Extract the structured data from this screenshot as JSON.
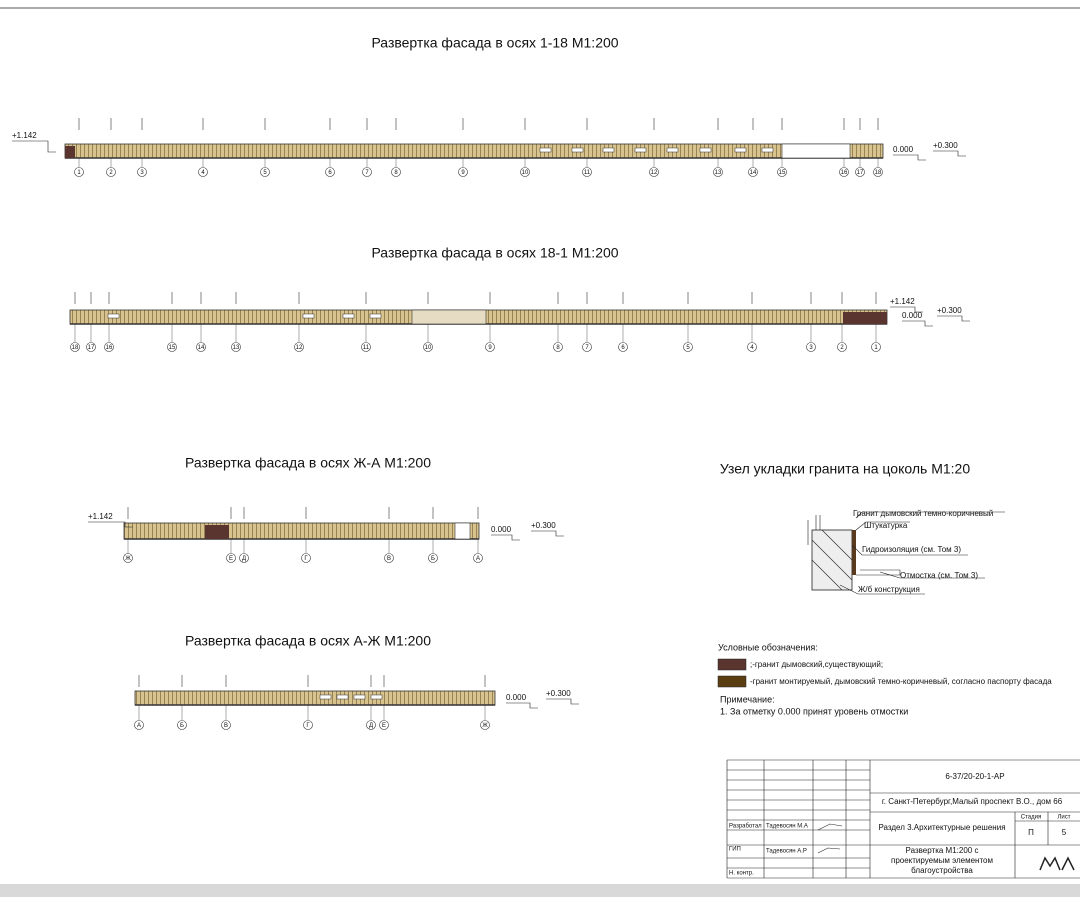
{
  "facades": [
    {
      "title": "Развертка фасада в осях 1-18 М1:200",
      "levels": [
        "+1.142",
        "0.000",
        "+0.300"
      ],
      "axes": [
        "1",
        "2",
        "3",
        "4",
        "5",
        "6",
        "7",
        "8",
        "9",
        "10",
        "11",
        "12",
        "13",
        "14",
        "15",
        "16",
        "17",
        "18"
      ]
    },
    {
      "title": "Развертка фасада в осях 18-1 М1:200",
      "levels": [
        "+1.142",
        "0.000",
        "+0.300"
      ],
      "axes": [
        "18",
        "17",
        "16",
        "15",
        "14",
        "13",
        "12",
        "11",
        "10",
        "9",
        "8",
        "7",
        "6",
        "5",
        "4",
        "3",
        "2",
        "1"
      ]
    },
    {
      "title": "Развертка фасада в осях Ж-А М1:200",
      "levels": [
        "+1.142",
        "0.000",
        "+0.300"
      ],
      "axes": [
        "Ж",
        "Е",
        "Д",
        "Г",
        "В",
        "Б",
        "А"
      ]
    },
    {
      "title": "Развертка фасада в осях А-Ж М1:200",
      "levels": [
        "0.000",
        "+0.300"
      ],
      "axes": [
        "А",
        "Б",
        "В",
        "Г",
        "Д",
        "Е",
        "Ж"
      ]
    }
  ],
  "detail": {
    "title": "Узел укладки гранита на цоколь М1:20",
    "labels": [
      "Гранит дымовский темно-коричневый",
      "Штукатурка",
      "Гидроизоляция (см. Том 3)",
      "Отмостка (см. Том 3)",
      "Ж/б конструкция"
    ]
  },
  "legend": {
    "title": "Условные обозначения:",
    "items": [
      ";-гранит дымовский,существующий;",
      "-гранит монтируемый, дымовский темно-коричневый, согласно паспорту фасада"
    ]
  },
  "note": {
    "title": "Примечание:",
    "text": "1. За отметку 0.000 принят уровень отмостки"
  },
  "stamp": {
    "code": "6-37/20-20-1-АР",
    "address": "г. Санкт-Петербург,Малый проспект В.О., дом 66",
    "section": "Раздел 3.Архитектурные решения",
    "stage_header": "Стадия",
    "sheet_header": "Лист",
    "stage": "П",
    "sheet": "5",
    "sheet_title": [
      "Развертка М1:200 с",
      "проектируемым элементом",
      "благоустройства"
    ],
    "people": [
      {
        "role": "Разработал",
        "name": "Тадевосян М.А"
      },
      {
        "role": "ГИП",
        "name": "Тадевосян А.Р"
      },
      {
        "role": "Н. контр."
      }
    ]
  }
}
